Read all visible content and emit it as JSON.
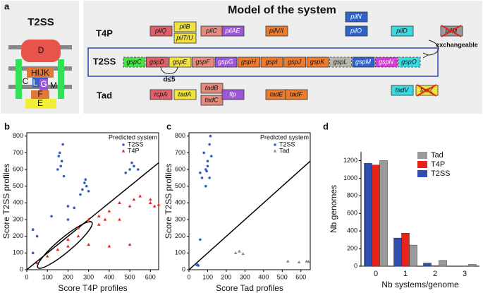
{
  "panel_a": {
    "label": "a",
    "left": {
      "title": "T2SS",
      "parts": [
        "D",
        "HIJK",
        "C",
        "L",
        "G",
        "M",
        "F",
        "E"
      ]
    },
    "title": "Model of the system",
    "note_exchangeable": "exchangeable",
    "note_distance": "d≤5",
    "rows": [
      {
        "name": "T4P",
        "genes": [
          {
            "name": "pilQ",
            "color": "#e0606a"
          },
          {
            "name": "pilB",
            "color": "#f2e33c"
          },
          {
            "name": "pilT/U",
            "color": "#f2e33c"
          },
          {
            "name": "pilC",
            "color": "#e58a7c"
          },
          {
            "name": "pilAE",
            "color": "#9b57d6"
          },
          {
            "name": "pilV/I",
            "color": "#ee7a2e"
          },
          {
            "name": "pilN",
            "color": "#2f63c9"
          },
          {
            "name": "pilO",
            "color": "#2f63c9"
          },
          {
            "name": "pilD",
            "color": "#39dbe0"
          },
          {
            "name": "pilM",
            "color": "#9a9a9a",
            "crossed": true
          }
        ]
      },
      {
        "name": "T2SS",
        "genes": [
          {
            "name": "gspC",
            "color": "#4be04b",
            "dashed": true
          },
          {
            "name": "gspD",
            "color": "#e0606a"
          },
          {
            "name": "gspE",
            "color": "#f2e33c"
          },
          {
            "name": "gspF",
            "color": "#e58a7c"
          },
          {
            "name": "gspG",
            "color": "#9b57d6"
          },
          {
            "name": "gspH",
            "color": "#ee7a2e"
          },
          {
            "name": "gspI",
            "color": "#ee7a2e"
          },
          {
            "name": "gspJ",
            "color": "#ee7a2e"
          },
          {
            "name": "gspK",
            "color": "#ee7a2e"
          },
          {
            "name": "gspL",
            "color": "#b8b8a8",
            "dashed": true
          },
          {
            "name": "gspM",
            "color": "#2f63c9"
          },
          {
            "name": "gspN",
            "color": "#d23dd2",
            "dashed": true
          },
          {
            "name": "gspO",
            "color": "#39dbe0",
            "dashed": true
          }
        ]
      },
      {
        "name": "Tad",
        "genes": [
          {
            "name": "rcpA",
            "color": "#e0606a"
          },
          {
            "name": "tadA",
            "color": "#f2e33c"
          },
          {
            "name": "tadB",
            "color": "#e58a7c"
          },
          {
            "name": "tadC",
            "color": "#e58a7c"
          },
          {
            "name": "flp",
            "color": "#9b57d6"
          },
          {
            "name": "tadE",
            "color": "#ee7a2e"
          },
          {
            "name": "tadF",
            "color": "#ee7a2e"
          },
          {
            "name": "tadV",
            "color": "#39dbe0"
          },
          {
            "name": "tadZ",
            "color": "#f2e33c",
            "crossed": true
          }
        ]
      }
    ]
  },
  "chart_data": [
    {
      "type": "scatter",
      "label": "b",
      "xlabel": "Score T4P profiles",
      "ylabel": "Score T2SS profiles",
      "legend_title": "Predicted system",
      "xlim": [
        0,
        640
      ],
      "ylim": [
        0,
        820
      ],
      "xticks": [
        0,
        100,
        200,
        300,
        400,
        500,
        600
      ],
      "yticks": [
        0,
        100,
        200,
        300,
        400,
        500,
        600,
        700,
        800
      ],
      "series": [
        {
          "name": "T2SS",
          "color": "#2f5fc4",
          "marker": "circle",
          "x": [
            160,
            170,
            150,
            175,
            180,
            165,
            155,
            270,
            280,
            300,
            260,
            290,
            285,
            500,
            520,
            480,
            540,
            510,
            120,
            200,
            230,
            30,
            50,
            200,
            30
          ],
          "y": [
            700,
            650,
            600,
            750,
            560,
            620,
            680,
            480,
            520,
            470,
            450,
            500,
            540,
            600,
            620,
            580,
            600,
            640,
            320,
            380,
            370,
            240,
            200,
            300,
            100
          ]
        },
        {
          "name": "T4P",
          "color": "#e8231c",
          "marker": "triangle",
          "x": [
            400,
            450,
            500,
            600,
            620,
            550,
            350,
            300,
            250,
            200,
            150,
            100,
            300,
            400,
            500,
            200,
            50,
            600,
            640,
            450,
            350,
            250,
            520,
            380
          ],
          "y": [
            350,
            400,
            380,
            420,
            380,
            440,
            320,
            300,
            250,
            180,
            120,
            80,
            150,
            140,
            150,
            140,
            40,
            400,
            390,
            300,
            270,
            200,
            420,
            300
          ]
        }
      ]
    },
    {
      "type": "scatter",
      "label": "c",
      "xlabel": "Score Tad profiles",
      "ylabel": "Score T2SS profiles",
      "legend_title": "Predicted system",
      "xlim": [
        0,
        650
      ],
      "ylim": [
        0,
        820
      ],
      "xticks": [
        0,
        100,
        200,
        300,
        400,
        500,
        600
      ],
      "yticks": [
        0,
        100,
        200,
        300,
        400,
        500,
        600,
        700,
        800
      ],
      "series": [
        {
          "name": "T2SS",
          "color": "#2f5fc4",
          "marker": "circle",
          "x": [
            80,
            100,
            90,
            110,
            60,
            70,
            100,
            120,
            110,
            90,
            60,
            40,
            50,
            45,
            115,
            95
          ],
          "y": [
            700,
            650,
            600,
            750,
            580,
            550,
            620,
            680,
            550,
            500,
            180,
            30,
            25,
            30,
            800,
            590
          ]
        },
        {
          "name": "Tad",
          "color": "#8a8a8a",
          "marker": "triangle",
          "x": [
            250,
            270,
            290,
            530,
            590,
            630,
            640
          ],
          "y": [
            100,
            110,
            95,
            50,
            45,
            50,
            48
          ]
        }
      ]
    },
    {
      "type": "bar",
      "label": "d",
      "xlabel": "Nb systems/genome",
      "ylabel": "Nb genomes",
      "categories": [
        "0",
        "1",
        "2",
        "3"
      ],
      "ylim": [
        0,
        1300
      ],
      "yticks": [
        0,
        200,
        400,
        600,
        800,
        1000,
        1200
      ],
      "series": [
        {
          "name": "T2SS",
          "color": "#2f4fb0",
          "values": [
            1170,
            320,
            35,
            0
          ]
        },
        {
          "name": "T4P",
          "color": "#e8231c",
          "values": [
            1150,
            375,
            5,
            0
          ]
        },
        {
          "name": "Tad",
          "color": "#9a9a9a",
          "values": [
            1200,
            240,
            65,
            20
          ]
        }
      ]
    }
  ]
}
